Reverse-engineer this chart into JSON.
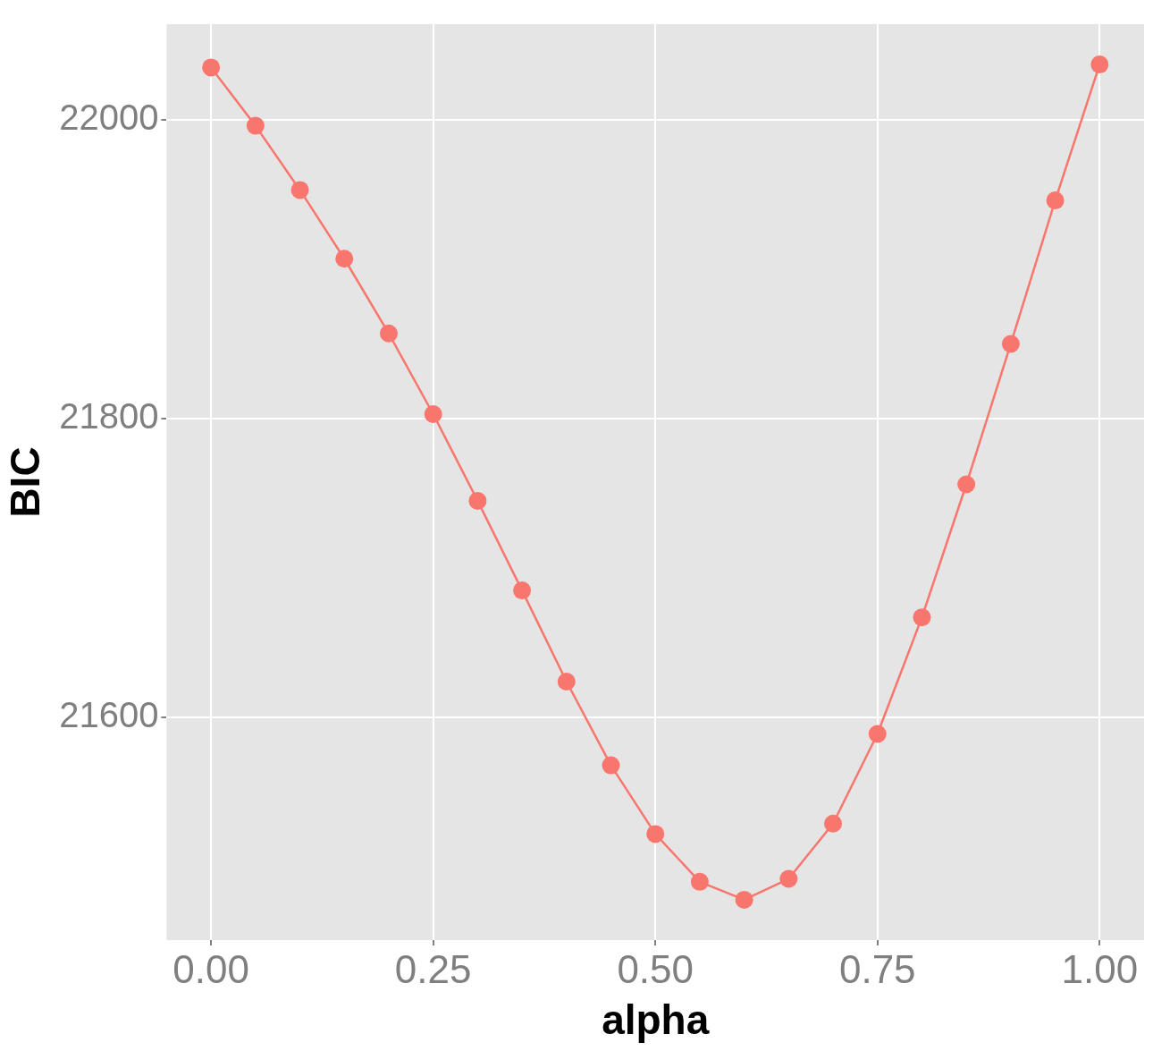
{
  "chart_data": {
    "type": "line",
    "xlabel": "alpha",
    "ylabel": "BIC",
    "x": [
      0,
      0.05,
      0.1,
      0.15,
      0.2,
      0.25,
      0.3,
      0.35,
      0.4,
      0.45,
      0.5,
      0.55,
      0.6,
      0.65,
      0.7,
      0.75,
      0.8,
      0.85,
      0.9,
      0.95,
      1
    ],
    "series": [
      {
        "color": "#f8766d",
        "values": [
          22035,
          21996,
          21953,
          21907,
          21857,
          21803,
          21745,
          21685,
          21624,
          21568,
          21522,
          21490,
          21478,
          21492,
          21529,
          21589,
          21667,
          21756,
          21850,
          21946,
          22037
        ]
      }
    ],
    "xlim": [
      -0.05,
      1.05
    ],
    "ylim": [
      21451,
      22064
    ],
    "xticks": [
      {
        "value": 0,
        "label": "0.00"
      },
      {
        "value": 0.25,
        "label": "0.25"
      },
      {
        "value": 0.5,
        "label": "0.50"
      },
      {
        "value": 0.75,
        "label": "0.75"
      },
      {
        "value": 1,
        "label": "1.00"
      }
    ],
    "yticks": [
      21600,
      21800,
      22000
    ],
    "grid": true,
    "legend": false,
    "marker": "circle",
    "line_style": "solid"
  }
}
